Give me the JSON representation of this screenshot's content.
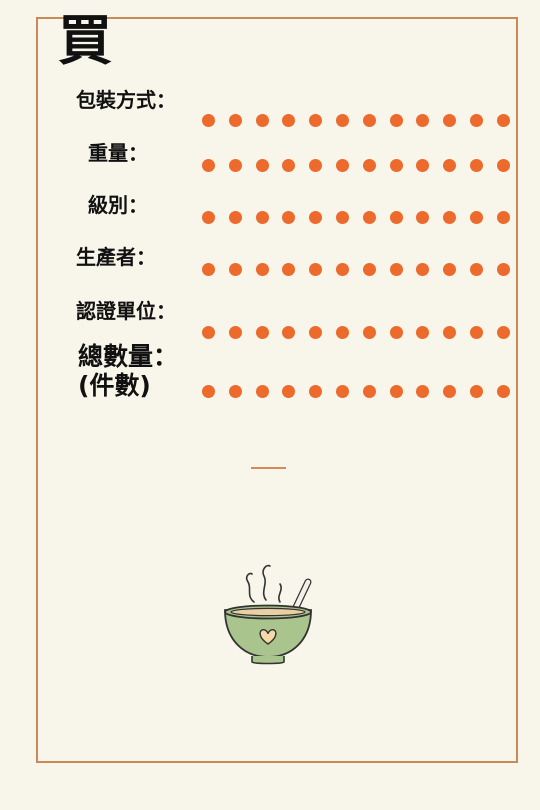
{
  "title": "買",
  "fields": [
    {
      "label": "包裝方式："
    },
    {
      "label": "重量："
    },
    {
      "label": "級別："
    },
    {
      "label": "生產者："
    },
    {
      "label": "認證單位："
    },
    {
      "label": "總數量：",
      "sub": "(件數)"
    }
  ],
  "colors": {
    "dot": "#ec6a2c",
    "frame": "#c98a56",
    "background": "#f8f5ea",
    "bowl": "#a9c48d"
  },
  "decoration": {
    "icon": "soup-bowl-icon"
  }
}
